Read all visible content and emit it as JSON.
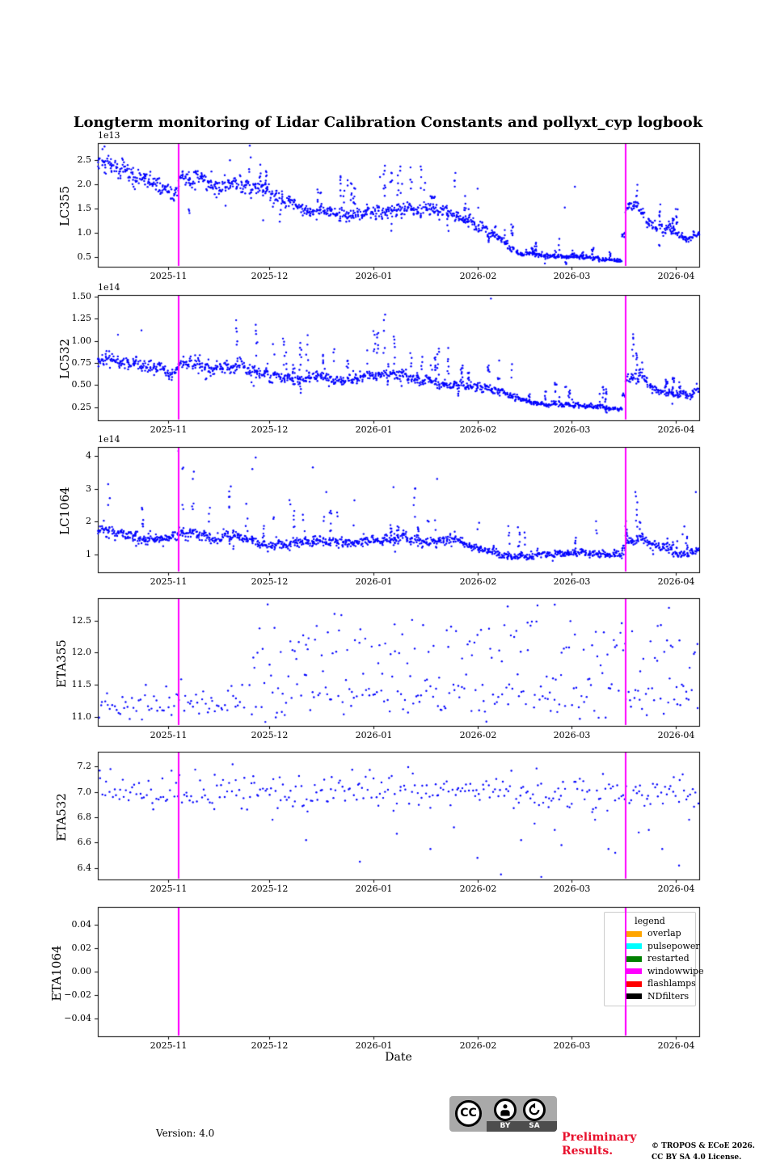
{
  "figure": {
    "title": "Longterm monitoring of Lidar Calibration Constants and pollyxt_cyp logbook",
    "xlabel": "Date"
  },
  "chart_data": {
    "type": "scatter",
    "point_color": "#0000FF",
    "marker_size_px": 2.4,
    "x_axis": {
      "start": "2025-10-11",
      "end": "2026-04-08",
      "ticks": [
        {
          "date": "2025-11-01",
          "label": "2025-11"
        },
        {
          "date": "2025-12-01",
          "label": "2025-12"
        },
        {
          "date": "2026-01-01",
          "label": "2026-01"
        },
        {
          "date": "2026-02-01",
          "label": "2026-02"
        },
        {
          "date": "2026-03-01",
          "label": "2026-03"
        },
        {
          "date": "2026-04-01",
          "label": "2026-04"
        }
      ]
    },
    "events": [
      {
        "date": "2025-11-04",
        "type": "windowwipe",
        "color": "#FF00FF"
      },
      {
        "date": "2026-03-17",
        "type": "windowwipe",
        "color": "#FF00FF"
      }
    ],
    "legend": {
      "title": "legend",
      "items": [
        {
          "label": "overlap",
          "color": "#FFA500"
        },
        {
          "label": "pulsepower",
          "color": "#00FFFF"
        },
        {
          "label": "restarted",
          "color": "#008000"
        },
        {
          "label": "windowwipe",
          "color": "#FF00FF"
        },
        {
          "label": "flashlamps",
          "color": "#FF0000"
        },
        {
          "label": "NDfilters",
          "color": "#000000"
        }
      ]
    },
    "subplots": [
      {
        "ylabel": "LC355",
        "offset_text": "1e13",
        "ylim": [
          0.3,
          2.85
        ],
        "yticks": [
          {
            "v": 0.5,
            "label": "0.5"
          },
          {
            "v": 1.0,
            "label": "1.0"
          },
          {
            "v": 1.5,
            "label": "1.5"
          },
          {
            "v": 2.0,
            "label": "2.0"
          },
          {
            "v": 2.5,
            "label": "2.5"
          }
        ],
        "series": [
          {
            "kind": "cluster",
            "points_per_day": 7,
            "rel_sigma": 0.042,
            "day_jitter": 0.05,
            "spike_from": "2025-11-18",
            "spike_prob": 0.3,
            "spike_mult": 1.8,
            "spike_points": 6,
            "dip_prob": 0.05,
            "dip_mult": 0.6,
            "trend": [
              [
                "2025-10-11",
                2.45
              ],
              [
                "2025-10-18",
                2.3
              ],
              [
                "2025-10-26",
                2.05
              ],
              [
                "2025-11-02",
                1.85
              ],
              [
                "2025-11-03",
                1.7
              ],
              [
                "2025-11-04",
                2.15
              ],
              [
                "2025-11-12",
                2.1
              ],
              [
                "2025-11-16",
                1.95
              ],
              [
                "2025-11-20",
                2.1
              ],
              [
                "2025-11-24",
                1.95
              ],
              [
                "2025-12-01",
                1.85
              ],
              [
                "2025-12-08",
                1.6
              ],
              [
                "2025-12-14",
                1.45
              ],
              [
                "2025-12-22",
                1.4
              ],
              [
                "2026-01-01",
                1.4
              ],
              [
                "2026-01-08",
                1.5
              ],
              [
                "2026-01-14",
                1.45
              ],
              [
                "2026-01-20",
                1.5
              ],
              [
                "2026-01-26",
                1.35
              ],
              [
                "2026-02-02",
                1.15
              ],
              [
                "2026-02-08",
                0.85
              ],
              [
                "2026-02-12",
                0.6
              ],
              [
                "2026-02-18",
                0.58
              ],
              [
                "2026-02-24",
                0.52
              ],
              [
                "2026-03-05",
                0.5
              ],
              [
                "2026-03-16",
                0.42
              ],
              [
                "2026-03-17",
                1.45
              ],
              [
                "2026-03-20",
                1.55
              ],
              [
                "2026-03-24",
                1.25
              ],
              [
                "2026-03-28",
                1.1
              ],
              [
                "2026-04-01",
                1.0
              ],
              [
                "2026-04-04",
                0.85
              ],
              [
                "2026-04-08",
                1.0
              ]
            ]
          }
        ],
        "outliers": [
          [
            "2025-10-13",
            2.78
          ],
          [
            "2026-01-03",
            2.15
          ],
          [
            "2026-02-27",
            1.52
          ],
          [
            "2026-03-02",
            1.95
          ]
        ]
      },
      {
        "ylabel": "LC532",
        "offset_text": "1e14",
        "ylim": [
          0.1,
          1.52
        ],
        "yticks": [
          {
            "v": 0.25,
            "label": "0.25"
          },
          {
            "v": 0.5,
            "label": "0.50"
          },
          {
            "v": 0.75,
            "label": "0.75"
          },
          {
            "v": 1.0,
            "label": "1.00"
          },
          {
            "v": 1.25,
            "label": "1.25"
          },
          {
            "v": 1.5,
            "label": "1.50"
          }
        ],
        "series": [
          {
            "kind": "cluster",
            "points_per_day": 7,
            "rel_sigma": 0.05,
            "day_jitter": 0.05,
            "spike_from": "2025-11-20",
            "spike_prob": 0.3,
            "spike_mult": 2.1,
            "spike_points": 6,
            "dip_prob": 0.03,
            "dip_mult": 0.7,
            "trend": [
              [
                "2025-10-11",
                0.79
              ],
              [
                "2025-10-20",
                0.76
              ],
              [
                "2025-11-02",
                0.64
              ],
              [
                "2025-11-03",
                0.62
              ],
              [
                "2025-11-04",
                0.77
              ],
              [
                "2025-11-10",
                0.73
              ],
              [
                "2025-11-16",
                0.68
              ],
              [
                "2025-11-22",
                0.72
              ],
              [
                "2025-12-01",
                0.62
              ],
              [
                "2025-12-08",
                0.55
              ],
              [
                "2025-12-14",
                0.6
              ],
              [
                "2025-12-22",
                0.55
              ],
              [
                "2026-01-01",
                0.62
              ],
              [
                "2026-01-10",
                0.6
              ],
              [
                "2026-01-16",
                0.55
              ],
              [
                "2026-01-24",
                0.5
              ],
              [
                "2026-02-01",
                0.48
              ],
              [
                "2026-02-08",
                0.42
              ],
              [
                "2026-02-14",
                0.33
              ],
              [
                "2026-02-20",
                0.28
              ],
              [
                "2026-03-01",
                0.27
              ],
              [
                "2026-03-10",
                0.25
              ],
              [
                "2026-03-16",
                0.24
              ],
              [
                "2026-03-17",
                0.55
              ],
              [
                "2026-03-22",
                0.6
              ],
              [
                "2026-03-26",
                0.45
              ],
              [
                "2026-04-01",
                0.4
              ],
              [
                "2026-04-05",
                0.38
              ],
              [
                "2026-04-08",
                0.45
              ]
            ]
          }
        ],
        "outliers": [
          [
            "2026-02-05",
            1.48
          ],
          [
            "2025-10-17",
            1.07
          ],
          [
            "2025-10-24",
            1.12
          ]
        ]
      },
      {
        "ylabel": "LC1064",
        "offset_text": "1e14",
        "ylim": [
          0.46,
          4.27
        ],
        "yticks": [
          {
            "v": 1,
            "label": "1"
          },
          {
            "v": 2,
            "label": "2"
          },
          {
            "v": 3,
            "label": "3"
          },
          {
            "v": 4,
            "label": "4"
          }
        ],
        "series": [
          {
            "kind": "cluster",
            "points_per_day": 7,
            "rel_sigma": 0.05,
            "day_jitter": 0.05,
            "spike_from": "2025-10-14",
            "spike_prob": 0.22,
            "spike_mult": 2.2,
            "spike_points": 5,
            "dip_prob": 0.04,
            "dip_mult": 0.72,
            "trend": [
              [
                "2025-10-11",
                1.75
              ],
              [
                "2025-10-18",
                1.65
              ],
              [
                "2025-10-24",
                1.5
              ],
              [
                "2025-11-02",
                1.45
              ],
              [
                "2025-11-04",
                1.7
              ],
              [
                "2025-11-10",
                1.6
              ],
              [
                "2025-11-16",
                1.5
              ],
              [
                "2025-11-22",
                1.55
              ],
              [
                "2025-12-01",
                1.3
              ],
              [
                "2025-12-08",
                1.35
              ],
              [
                "2025-12-14",
                1.4
              ],
              [
                "2025-12-22",
                1.35
              ],
              [
                "2026-01-01",
                1.45
              ],
              [
                "2026-01-10",
                1.5
              ],
              [
                "2026-01-16",
                1.4
              ],
              [
                "2026-01-24",
                1.45
              ],
              [
                "2026-02-01",
                1.2
              ],
              [
                "2026-02-08",
                1.0
              ],
              [
                "2026-02-14",
                0.95
              ],
              [
                "2026-02-22",
                1.0
              ],
              [
                "2026-03-01",
                1.05
              ],
              [
                "2026-03-10",
                1.0
              ],
              [
                "2026-03-16",
                1.0
              ],
              [
                "2026-03-17",
                1.4
              ],
              [
                "2026-03-22",
                1.5
              ],
              [
                "2026-03-26",
                1.3
              ],
              [
                "2026-04-01",
                1.05
              ],
              [
                "2026-04-05",
                1.0
              ],
              [
                "2026-04-08",
                1.15
              ]
            ]
          }
        ],
        "outliers": [
          [
            "2025-11-04",
            4.15
          ],
          [
            "2025-11-26",
            3.6
          ],
          [
            "2025-11-27",
            3.95
          ],
          [
            "2025-12-14",
            3.65
          ],
          [
            "2025-12-18",
            2.9
          ],
          [
            "2026-01-07",
            3.05
          ],
          [
            "2026-01-20",
            3.3
          ],
          [
            "2026-03-20",
            2.9
          ],
          [
            "2026-04-07",
            2.9
          ]
        ]
      },
      {
        "ylabel": "ETA355",
        "offset_text": "",
        "ylim": [
          10.86,
          12.85
        ],
        "yticks": [
          {
            "v": 11.0,
            "label": "11.0"
          },
          {
            "v": 11.5,
            "label": "11.5"
          },
          {
            "v": 12.0,
            "label": "12.0"
          },
          {
            "v": 12.5,
            "label": "12.5"
          }
        ],
        "series": [
          {
            "kind": "band",
            "from": "2025-10-11",
            "to": "2025-11-24",
            "per_day": 1.7,
            "bands": [
              {
                "w": 1,
                "mean": 11.22,
                "sigma": 0.14
              }
            ],
            "clip": [
              10.9,
              11.65
            ]
          },
          {
            "kind": "band",
            "from": "2025-11-25",
            "to": "2026-04-08",
            "per_day": 2.1,
            "bands": [
              {
                "w": 0.42,
                "mean": 12.15,
                "sigma": 0.2
              },
              {
                "w": 0.58,
                "mean": 11.32,
                "sigma": 0.2
              }
            ],
            "clip": [
              10.9,
              12.78
            ]
          }
        ],
        "outliers": [
          [
            "2025-12-12",
            11.65
          ],
          [
            "2026-02-10",
            12.72
          ],
          [
            "2026-02-24",
            12.75
          ],
          [
            "2026-03-30",
            12.7
          ]
        ]
      },
      {
        "ylabel": "ETA532",
        "offset_text": "",
        "ylim": [
          6.31,
          7.315
        ],
        "yticks": [
          {
            "v": 6.4,
            "label": "6.4"
          },
          {
            "v": 6.6,
            "label": "6.6"
          },
          {
            "v": 6.8,
            "label": "6.8"
          },
          {
            "v": 7.0,
            "label": "7.0"
          },
          {
            "v": 7.2,
            "label": "7.2"
          }
        ],
        "series": [
          {
            "kind": "band",
            "from": "2025-10-11",
            "to": "2026-04-08",
            "per_day": 1.7,
            "bands": [
              {
                "w": 1,
                "mean": 7.0,
                "sigma": 0.07
              }
            ],
            "clip": [
              6.84,
              7.28
            ]
          }
        ],
        "outliers": [
          [
            "2025-12-02",
            6.78
          ],
          [
            "2025-12-12",
            6.62
          ],
          [
            "2025-12-28",
            6.45
          ],
          [
            "2026-01-08",
            6.67
          ],
          [
            "2026-01-18",
            6.55
          ],
          [
            "2026-01-25",
            6.72
          ],
          [
            "2026-02-01",
            6.48
          ],
          [
            "2026-02-08",
            6.35
          ],
          [
            "2026-02-14",
            6.62
          ],
          [
            "2026-02-18",
            6.75
          ],
          [
            "2026-02-20",
            6.33
          ],
          [
            "2026-02-24",
            6.7
          ],
          [
            "2026-02-26",
            6.58
          ],
          [
            "2026-03-04",
            6.3
          ],
          [
            "2026-03-08",
            6.78
          ],
          [
            "2026-03-12",
            6.55
          ],
          [
            "2026-03-14",
            6.52
          ],
          [
            "2026-03-21",
            6.68
          ],
          [
            "2026-03-24",
            6.7
          ],
          [
            "2026-03-28",
            6.55
          ],
          [
            "2026-04-02",
            6.42
          ],
          [
            "2026-04-05",
            6.78
          ]
        ]
      },
      {
        "ylabel": "ETA1064",
        "offset_text": "",
        "ylim": [
          -0.055,
          0.055
        ],
        "yticks": [
          {
            "v": -0.04,
            "label": "−0.04"
          },
          {
            "v": -0.02,
            "label": "−0.02"
          },
          {
            "v": 0.0,
            "label": "0.00"
          },
          {
            "v": 0.02,
            "label": "0.02"
          },
          {
            "v": 0.04,
            "label": "0.04"
          }
        ],
        "series": [],
        "outliers": []
      }
    ]
  },
  "footer": {
    "version": "Version: 4.0",
    "preliminary": "Preliminary Results.",
    "copyright_line1": "© TROPOS & ECoE 2026.",
    "copyright_line2": "CC BY SA 4.0 License.",
    "cc_badge": {
      "cc": "CC",
      "by": "BY",
      "sa": "SA"
    }
  }
}
